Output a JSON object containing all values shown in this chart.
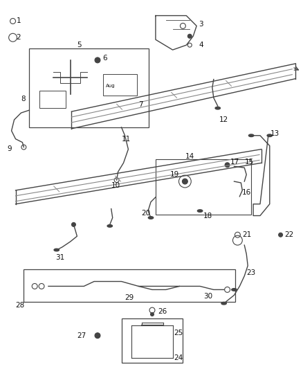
{
  "bg_color": "#ffffff",
  "line_color": "#444444",
  "label_color": "#111111",
  "fig_width": 4.38,
  "fig_height": 5.33,
  "dpi": 100
}
